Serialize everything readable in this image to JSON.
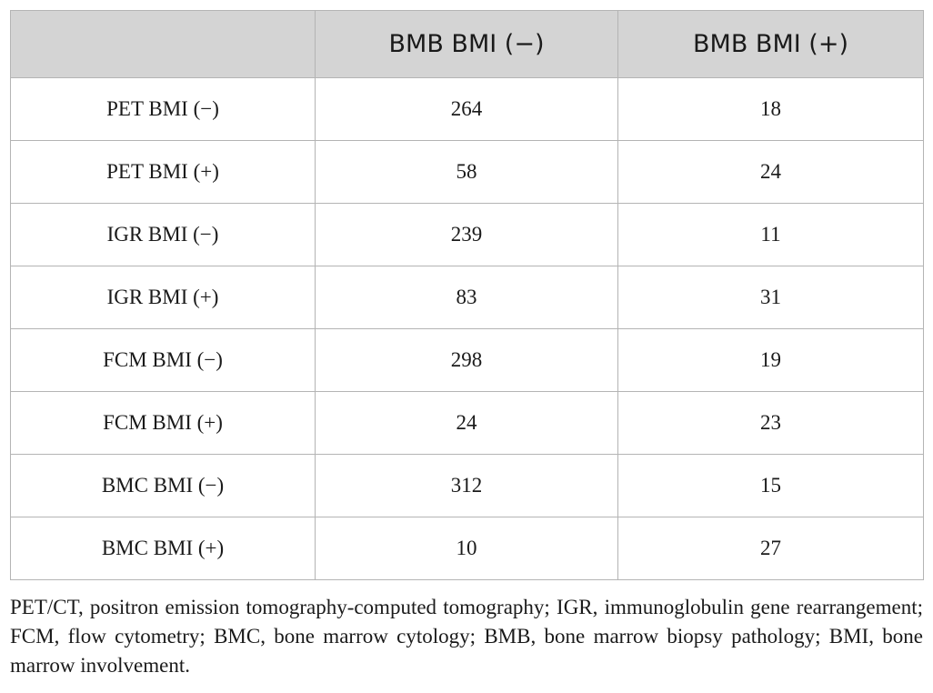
{
  "table": {
    "headers": [
      "",
      "BMB BMI (−)",
      "BMB BMI (+)"
    ],
    "rows": [
      [
        "PET BMI (−)",
        "264",
        "18"
      ],
      [
        "PET BMI (+)",
        "58",
        "24"
      ],
      [
        "IGR BMI (−)",
        "239",
        "11"
      ],
      [
        "IGR BMI (+)",
        "83",
        "31"
      ],
      [
        "FCM BMI (−)",
        "298",
        "19"
      ],
      [
        "FCM BMI (+)",
        "24",
        "23"
      ],
      [
        "BMC BMI (−)",
        "312",
        "15"
      ],
      [
        "BMC BMI (+)",
        "10",
        "27"
      ]
    ]
  },
  "footnote": "PET/CT, positron emission tomography-computed tomography; IGR, immunoglobulin gene rearrangement; FCM, flow cytometry; BMC, bone marrow cytology; BMB, bone marrow biopsy pathology; BMI, bone marrow involvement.",
  "colors": {
    "header_background": "#d4d4d4",
    "border": "#b4b4b4",
    "text": "#1a1a1a"
  }
}
